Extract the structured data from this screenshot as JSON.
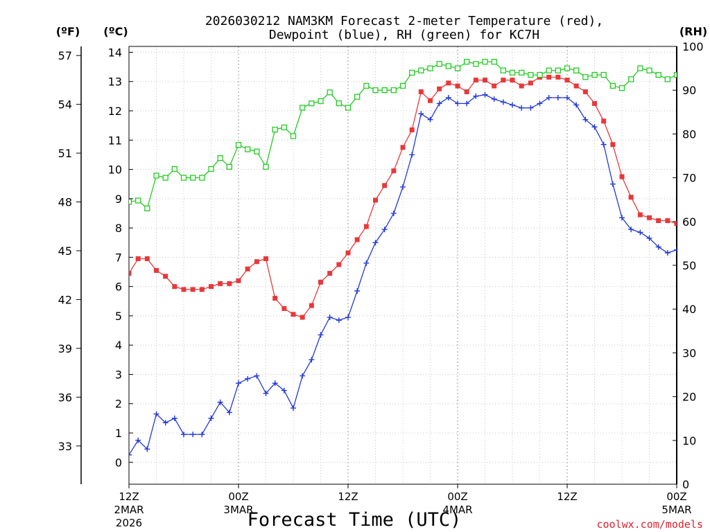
{
  "chart_data": {
    "type": "line",
    "title_line1": "2026030212 NAM3KM Forecast 2-meter Temperature (red),",
    "title_line2": "Dewpoint (blue), RH (green) for KC7H",
    "xlabel": "Forecast Time (UTC)",
    "credit": "coolwx.com/models",
    "unit_f": "(ºF)",
    "unit_c": "(ºC)",
    "unit_rh": "(RH)",
    "x_range_hours": [
      0,
      60
    ],
    "x_ticks": [
      {
        "hour": 0,
        "line1": "12Z",
        "line2": "2MAR",
        "line3": "2026"
      },
      {
        "hour": 12,
        "line1": "00Z",
        "line2": "3MAR",
        "line3": ""
      },
      {
        "hour": 24,
        "line1": "12Z",
        "line2": "",
        "line3": ""
      },
      {
        "hour": 36,
        "line1": "00Z",
        "line2": "4MAR",
        "line3": ""
      },
      {
        "hour": 48,
        "line1": "12Z",
        "line2": "",
        "line3": ""
      },
      {
        "hour": 60,
        "line1": "00Z",
        "line2": "5MAR",
        "line3": ""
      }
    ],
    "celsius_axis": {
      "range": [
        -0.75,
        14.2
      ],
      "ticks": [
        "0",
        "1",
        "2",
        "3",
        "4",
        "5",
        "6",
        "7",
        "8",
        "9",
        "10",
        "11",
        "12",
        "13",
        "14"
      ]
    },
    "fahrenheit_ticks": [
      "33",
      "36",
      "39",
      "42",
      "45",
      "48",
      "51",
      "54",
      "57"
    ],
    "rh_axis": {
      "range": [
        0,
        100
      ],
      "ticks": [
        "0",
        "10",
        "20",
        "30",
        "40",
        "50",
        "60",
        "70",
        "80",
        "90",
        "100"
      ]
    },
    "series": [
      {
        "name": "Temperature",
        "unit": "C",
        "color": "#e8383a",
        "marker": "filled-square",
        "x": [
          0,
          1,
          2,
          3,
          4,
          5,
          6,
          7,
          8,
          9,
          10,
          11,
          12,
          13,
          14,
          15,
          16,
          17,
          18,
          19,
          20,
          21,
          22,
          23,
          24,
          25,
          26,
          27,
          28,
          29,
          30,
          31,
          32,
          33,
          34,
          35,
          36,
          37,
          38,
          39,
          40,
          41,
          42,
          43,
          44,
          45,
          46,
          47,
          48,
          49,
          50,
          51,
          52,
          53,
          54,
          55,
          56,
          57,
          58,
          59,
          60
        ],
        "values": [
          6.45,
          6.95,
          6.95,
          6.55,
          6.35,
          6.0,
          5.9,
          5.9,
          5.9,
          6.0,
          6.1,
          6.1,
          6.2,
          6.6,
          6.85,
          6.95,
          5.6,
          5.25,
          5.05,
          4.95,
          5.35,
          6.15,
          6.45,
          6.75,
          7.15,
          7.6,
          8.05,
          8.95,
          9.45,
          9.95,
          10.75,
          11.35,
          12.65,
          12.35,
          12.75,
          12.95,
          12.85,
          12.65,
          13.05,
          13.05,
          12.85,
          13.05,
          13.05,
          12.85,
          12.95,
          13.15,
          13.15,
          13.15,
          13.05,
          12.85,
          12.65,
          12.25,
          11.65,
          10.85,
          9.75,
          9.05,
          8.45,
          8.35,
          8.25,
          8.25,
          8.15
        ]
      },
      {
        "name": "Dewpoint",
        "unit": "C",
        "color": "#2238d6",
        "marker": "plus",
        "x": [
          0,
          1,
          2,
          3,
          4,
          5,
          6,
          7,
          8,
          9,
          10,
          11,
          12,
          13,
          14,
          15,
          16,
          17,
          18,
          19,
          20,
          21,
          22,
          23,
          24,
          25,
          26,
          27,
          28,
          29,
          30,
          31,
          32,
          33,
          34,
          35,
          36,
          37,
          38,
          39,
          40,
          41,
          42,
          43,
          44,
          45,
          46,
          47,
          48,
          49,
          50,
          51,
          52,
          53,
          54,
          55,
          56,
          57,
          58,
          59,
          60
        ],
        "values": [
          0.25,
          0.75,
          0.45,
          1.65,
          1.35,
          1.5,
          0.95,
          0.95,
          0.95,
          1.5,
          2.05,
          1.7,
          2.7,
          2.85,
          2.95,
          2.35,
          2.7,
          2.45,
          1.85,
          2.95,
          3.5,
          4.35,
          4.95,
          4.85,
          4.95,
          5.85,
          6.8,
          7.5,
          7.95,
          8.5,
          9.4,
          10.5,
          11.9,
          11.7,
          12.25,
          12.45,
          12.25,
          12.25,
          12.5,
          12.55,
          12.4,
          12.3,
          12.2,
          12.1,
          12.1,
          12.25,
          12.45,
          12.45,
          12.45,
          12.2,
          11.7,
          11.45,
          10.85,
          9.5,
          8.35,
          7.95,
          7.85,
          7.65,
          7.35,
          7.15,
          7.25
        ]
      },
      {
        "name": "RH",
        "unit": "%",
        "color": "#22cc22",
        "marker": "open-square",
        "x": [
          0,
          1,
          2,
          3,
          4,
          5,
          6,
          7,
          8,
          9,
          10,
          11,
          12,
          13,
          14,
          15,
          16,
          17,
          18,
          19,
          20,
          21,
          22,
          23,
          24,
          25,
          26,
          27,
          28,
          29,
          30,
          31,
          32,
          33,
          34,
          35,
          36,
          37,
          38,
          39,
          40,
          41,
          42,
          43,
          44,
          45,
          46,
          47,
          48,
          49,
          50,
          51,
          52,
          53,
          54,
          55,
          56,
          57,
          58,
          59,
          60
        ],
        "values": [
          64.5,
          64.8,
          63.0,
          70.5,
          70.0,
          72.0,
          70.0,
          70.0,
          70.0,
          72.0,
          74.5,
          72.5,
          77.5,
          76.5,
          76.0,
          72.5,
          81.0,
          81.5,
          79.5,
          86.0,
          87.0,
          87.5,
          89.5,
          87.0,
          86.0,
          88.5,
          91.0,
          90.0,
          90.0,
          90.0,
          91.0,
          94.0,
          94.5,
          95.0,
          96.0,
          95.5,
          95.0,
          96.5,
          96.0,
          96.5,
          96.5,
          94.5,
          94.0,
          94.0,
          93.5,
          93.5,
          94.5,
          94.5,
          95.0,
          94.5,
          93.0,
          93.5,
          93.5,
          91.0,
          90.5,
          92.5,
          95.0,
          94.5,
          93.5,
          92.5,
          93.5
        ]
      }
    ]
  }
}
